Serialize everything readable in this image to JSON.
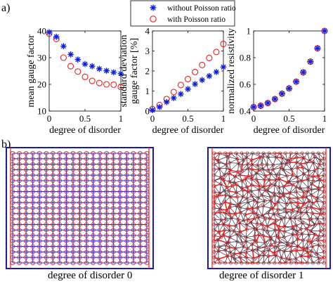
{
  "panel_labels": {
    "a": "a)",
    "b": "b)"
  },
  "legend": {
    "without": "without Poisson ratio",
    "with": "with Poisson ratio"
  },
  "colors": {
    "without": "#0a1ee6",
    "with": "#ee1c1c",
    "frame": "#1a1aa8"
  },
  "chart_data": [
    {
      "type": "scatter",
      "ylabel": "mean gauge factor",
      "xlabel": "degree of disorder",
      "xlim": [
        0,
        1
      ],
      "ylim": [
        10,
        40
      ],
      "xticks": [
        0,
        0.5,
        1
      ],
      "yticks": [
        10,
        20,
        30,
        40
      ],
      "series": [
        {
          "name": "without Poisson ratio",
          "marker": "asterisk",
          "x": [
            0,
            0.1,
            0.2,
            0.3,
            0.4,
            0.5,
            0.6,
            0.7,
            0.8,
            0.9,
            1.0
          ],
          "values": [
            39.5,
            37.8,
            34.3,
            31.2,
            29.3,
            27.6,
            26.8,
            25.8,
            25.1,
            24.5,
            24.0
          ]
        },
        {
          "name": "with Poisson ratio",
          "marker": "circle",
          "x": [
            0,
            0.1,
            0.2,
            0.3,
            0.4,
            0.5,
            0.6,
            0.7,
            0.8,
            0.9,
            1.0
          ],
          "values": [
            39.0,
            37.0,
            30.0,
            26.8,
            24.8,
            22.8,
            21.3,
            20.5,
            20.0,
            19.9,
            19.0
          ]
        }
      ]
    },
    {
      "type": "scatter",
      "ylabel": "standard deviation gauge factor [%]",
      "ylabel_lines": [
        "standard deviation",
        "gauge factor [%]"
      ],
      "xlabel": "degree of disorder",
      "xlim": [
        0,
        1
      ],
      "ylim": [
        0,
        4
      ],
      "xticks": [
        0,
        0.5,
        1
      ],
      "yticks": [
        0,
        1,
        2,
        3,
        4
      ],
      "series": [
        {
          "name": "without Poisson ratio",
          "marker": "asterisk",
          "x": [
            0,
            0.1,
            0.2,
            0.3,
            0.4,
            0.5,
            0.6,
            0.7,
            0.8,
            0.9,
            1.0
          ],
          "values": [
            0.05,
            0.2,
            0.45,
            0.65,
            0.85,
            1.1,
            1.35,
            1.55,
            1.75,
            1.95,
            2.2
          ]
        },
        {
          "name": "with Poisson ratio",
          "marker": "circle",
          "x": [
            0,
            0.1,
            0.2,
            0.3,
            0.4,
            0.5,
            0.6,
            0.7,
            0.8,
            0.9,
            1.0
          ],
          "values": [
            0.1,
            0.3,
            0.6,
            0.95,
            1.3,
            1.6,
            1.95,
            2.3,
            2.65,
            2.95,
            3.35
          ]
        }
      ]
    },
    {
      "type": "scatter",
      "ylabel": "normalized resistivity",
      "xlabel": "degree of disorder",
      "xlim": [
        0,
        1
      ],
      "ylim": [
        0.4,
        1.0
      ],
      "xticks": [
        0,
        0.5,
        1
      ],
      "yticks": [
        0.4,
        0.6,
        0.8,
        1
      ],
      "series": [
        {
          "name": "without Poisson ratio",
          "marker": "asterisk",
          "x": [
            0,
            0.1,
            0.2,
            0.3,
            0.4,
            0.5,
            0.6,
            0.7,
            0.8,
            0.9,
            1.0
          ],
          "values": [
            0.43,
            0.44,
            0.46,
            0.49,
            0.53,
            0.57,
            0.62,
            0.69,
            0.77,
            0.87,
            1.0
          ]
        },
        {
          "name": "with Poisson ratio",
          "marker": "circle",
          "x": [
            0,
            0.1,
            0.2,
            0.3,
            0.4,
            0.5,
            0.6,
            0.7,
            0.8,
            0.9,
            1.0
          ],
          "values": [
            0.43,
            0.44,
            0.46,
            0.49,
            0.53,
            0.57,
            0.62,
            0.69,
            0.77,
            0.87,
            1.0
          ]
        }
      ]
    }
  ],
  "networks": [
    {
      "caption": "degree of disorder 0",
      "disorder": 0,
      "grid_size": 20
    },
    {
      "caption": "degree of disorder 1",
      "disorder": 1,
      "grid_size": 20
    }
  ]
}
